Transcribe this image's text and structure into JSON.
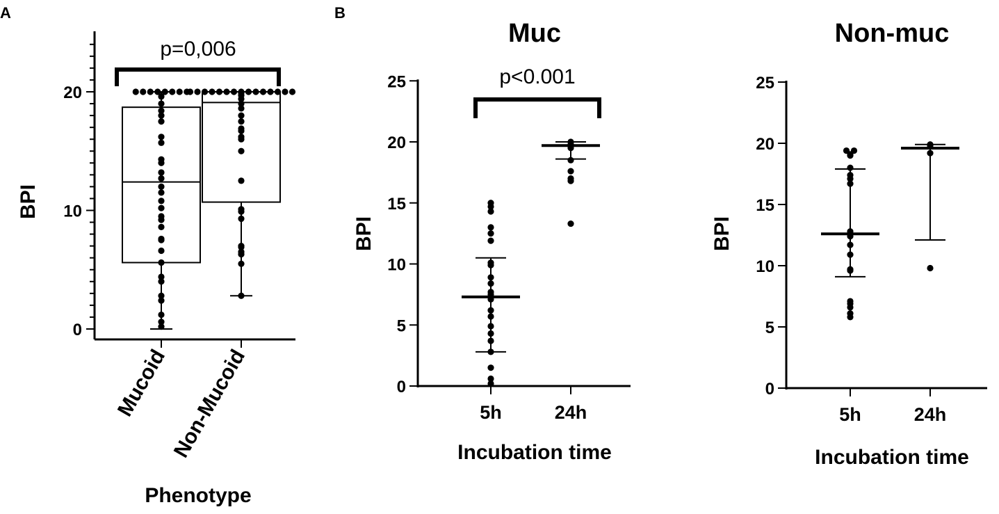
{
  "panel_labels": [
    "A",
    "B"
  ],
  "chart_data": [
    {
      "type": "box",
      "panel": "A",
      "title": "",
      "xlabel": "Phenotype",
      "ylabel": "BPI",
      "ylim": [
        0,
        25
      ],
      "yticks": [
        "0",
        "10",
        "20"
      ],
      "categories": [
        "Mucoid",
        "Non-Mucoid"
      ],
      "annotation": "p=0,006",
      "boxes": [
        {
          "min": 0,
          "q1": 5.6,
          "median": 12.4,
          "q3": 18.7,
          "max": 20
        },
        {
          "min": 2.8,
          "q1": 10.7,
          "median": 19.1,
          "q3": 20,
          "max": 20
        }
      ],
      "points": [
        [
          20,
          20,
          20,
          20,
          20,
          20,
          20,
          20,
          19.6,
          19.0,
          18.4,
          18.0,
          17.5,
          16.2,
          15.7,
          14.3,
          14.0,
          13.2,
          12.7,
          12.0,
          11.5,
          10.8,
          10.2,
          9.5,
          9.2,
          8.6,
          7.6,
          7.5,
          6.6,
          5.6,
          4.4,
          4.0,
          2.8,
          2.4,
          1.2,
          0.6,
          0.2
        ],
        [
          20,
          20,
          20,
          20,
          20,
          20,
          20,
          20,
          20,
          20,
          20,
          20,
          20,
          20,
          20,
          19.9,
          19.7,
          19.4,
          19.0,
          18.6,
          18.0,
          17.5,
          16.9,
          16.7,
          16.2,
          16.0,
          15.0,
          12.5,
          10.1,
          9.9,
          9.3,
          7.0,
          6.9,
          6.5,
          6.3,
          5.5,
          2.8
        ]
      ]
    },
    {
      "type": "scatter",
      "panel": "B",
      "title": "Muc",
      "xlabel": "Incubation time",
      "ylabel": "BPI",
      "ylim": [
        0,
        25
      ],
      "yticks": [
        "0",
        "5",
        "10",
        "15",
        "20",
        "25"
      ],
      "categories": [
        "5h",
        "24h"
      ],
      "annotation": "p<0.001",
      "summary": [
        {
          "median": 7.3,
          "low": 2.8,
          "high": 10.5
        },
        {
          "median": 19.7,
          "low": 18.6,
          "high": 20
        }
      ],
      "points": [
        [
          15.0,
          14.7,
          14.3,
          13.0,
          12.5,
          11.9,
          10.1,
          9.9,
          8.9,
          8.4,
          7.7,
          7.5,
          7.1,
          6.2,
          5.7,
          4.9,
          4.3,
          3.7,
          2.8,
          1.5,
          0.6,
          0.2
        ],
        [
          20.0,
          19.8,
          19.7,
          19.5,
          18.5,
          17.6,
          17.0,
          16.8,
          13.3
        ]
      ]
    },
    {
      "type": "scatter",
      "panel": "B",
      "title": "Non-muc",
      "xlabel": "Incubation time",
      "ylabel": "BPI",
      "ylim": [
        0,
        25
      ],
      "yticks": [
        "0",
        "5",
        "10",
        "15",
        "20",
        "25"
      ],
      "categories": [
        "5h",
        "24h"
      ],
      "annotation": "",
      "summary": [
        {
          "median": 12.6,
          "low": 9.1,
          "high": 17.9
        },
        {
          "median": 19.6,
          "low": 12.1,
          "high": 19.9
        }
      ],
      "points": [
        [
          19.4,
          19.4,
          19.1,
          19.0,
          18.0,
          17.4,
          17.1,
          16.7,
          12.8,
          12.6,
          12.4,
          11.7,
          10.9,
          9.7,
          9.6,
          7.1,
          6.9,
          6.6,
          6.1,
          5.8
        ],
        [
          19.9,
          19.8,
          19.2,
          9.8
        ]
      ]
    }
  ]
}
